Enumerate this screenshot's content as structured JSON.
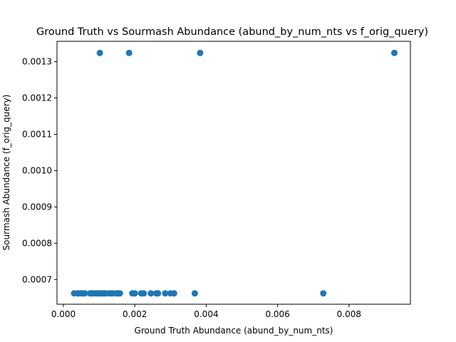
{
  "chart_data": {
    "type": "scatter",
    "title": "Ground Truth vs Sourmash Abundance (abund_by_num_nts vs f_orig_query)",
    "xlabel": "Ground Truth Abundance (abund_by_num_nts)",
    "ylabel": "Sourmash Abundance (f_orig_query)",
    "xlim": [
      -0.00018,
      0.00972
    ],
    "ylim": [
      0.000632,
      0.001356
    ],
    "x_ticks": [
      0.0,
      0.002,
      0.004,
      0.006,
      0.008
    ],
    "x_tick_labels": [
      "0.000",
      "0.002",
      "0.004",
      "0.006",
      "0.008"
    ],
    "y_ticks": [
      0.0007,
      0.0008,
      0.0009,
      0.001,
      0.0011,
      0.0012,
      0.0013
    ],
    "y_tick_labels": [
      "0.0007",
      "0.0008",
      "0.0009",
      "0.0010",
      "0.0011",
      "0.0012",
      "0.0013"
    ],
    "grid": false,
    "color": "#1f77b4",
    "x": [
      0.00102,
      0.00184,
      0.00383,
      0.00927,
      0.0003,
      0.0004,
      0.00045,
      0.0005,
      0.00055,
      0.0006,
      0.00075,
      0.0008,
      0.00087,
      0.00093,
      0.00097,
      0.001,
      0.00103,
      0.00108,
      0.00113,
      0.00118,
      0.00128,
      0.00133,
      0.00138,
      0.00148,
      0.00153,
      0.00158,
      0.00193,
      0.002,
      0.00218,
      0.00225,
      0.00245,
      0.0026,
      0.00265,
      0.00285,
      0.003,
      0.0031,
      0.00368,
      0.00728
    ],
    "y": [
      0.001324,
      0.001324,
      0.001324,
      0.001324,
      0.000662,
      0.000662,
      0.000662,
      0.000662,
      0.000662,
      0.000662,
      0.000662,
      0.000662,
      0.000662,
      0.000662,
      0.000662,
      0.000662,
      0.000662,
      0.000662,
      0.000662,
      0.000662,
      0.000662,
      0.000662,
      0.000662,
      0.000662,
      0.000662,
      0.000662,
      0.000662,
      0.000662,
      0.000662,
      0.000662,
      0.000662,
      0.000662,
      0.000662,
      0.000662,
      0.000662,
      0.000662,
      0.000662,
      0.000662
    ]
  }
}
